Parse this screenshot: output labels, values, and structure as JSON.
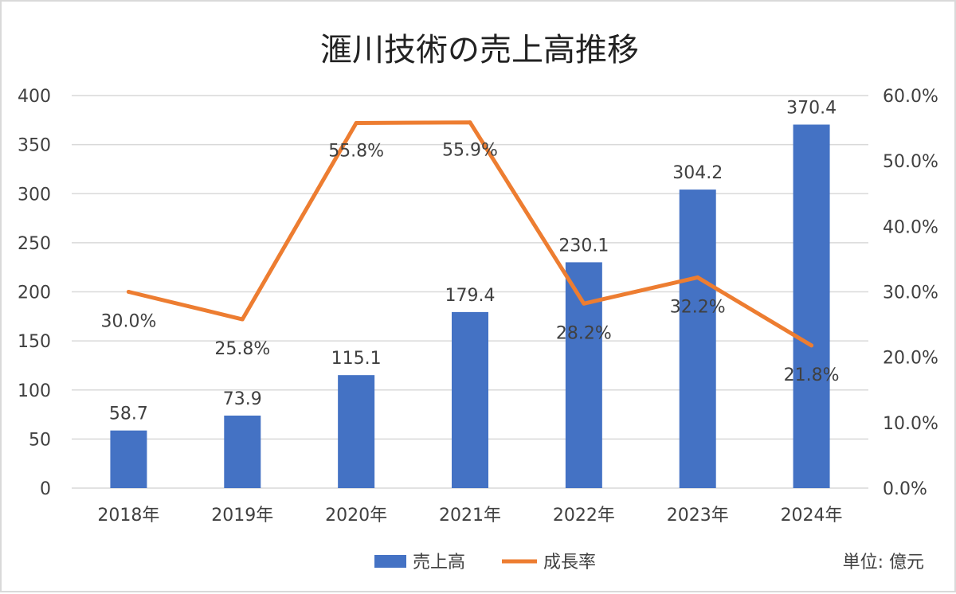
{
  "chart_data": {
    "type": "bar+line",
    "title": "滙川技術の売上高推移",
    "categories": [
      "2018年",
      "2019年",
      "2020年",
      "2021年",
      "2022年",
      "2023年",
      "2024年"
    ],
    "series": [
      {
        "name": "売上高",
        "type": "bar",
        "axis": "left",
        "color": "#4472c4",
        "values": [
          58.7,
          73.9,
          115.1,
          179.4,
          230.1,
          304.2,
          370.4
        ],
        "labels": [
          "58.7",
          "73.9",
          "115.1",
          "179.4",
          "230.1",
          "304.2",
          "370.4"
        ]
      },
      {
        "name": "成長率",
        "type": "line",
        "axis": "right",
        "color": "#ed7d31",
        "values": [
          30.0,
          25.8,
          55.8,
          55.9,
          28.2,
          32.2,
          21.8
        ],
        "labels": [
          "30.0%",
          "25.8%",
          "55.8%",
          "55.9%",
          "28.2%",
          "32.2%",
          "21.8%"
        ]
      }
    ],
    "y_left": {
      "ylim": [
        0,
        400
      ],
      "ticks": [
        "0",
        "50",
        "100",
        "150",
        "200",
        "250",
        "300",
        "350",
        "400"
      ]
    },
    "y_right": {
      "ylim": [
        0,
        60
      ],
      "ticks": [
        "0.0%",
        "10.0%",
        "20.0%",
        "30.0%",
        "40.0%",
        "50.0%",
        "60.0%"
      ]
    },
    "grid": true,
    "legend_position": "bottom",
    "unit_note": "単位: 億元"
  }
}
